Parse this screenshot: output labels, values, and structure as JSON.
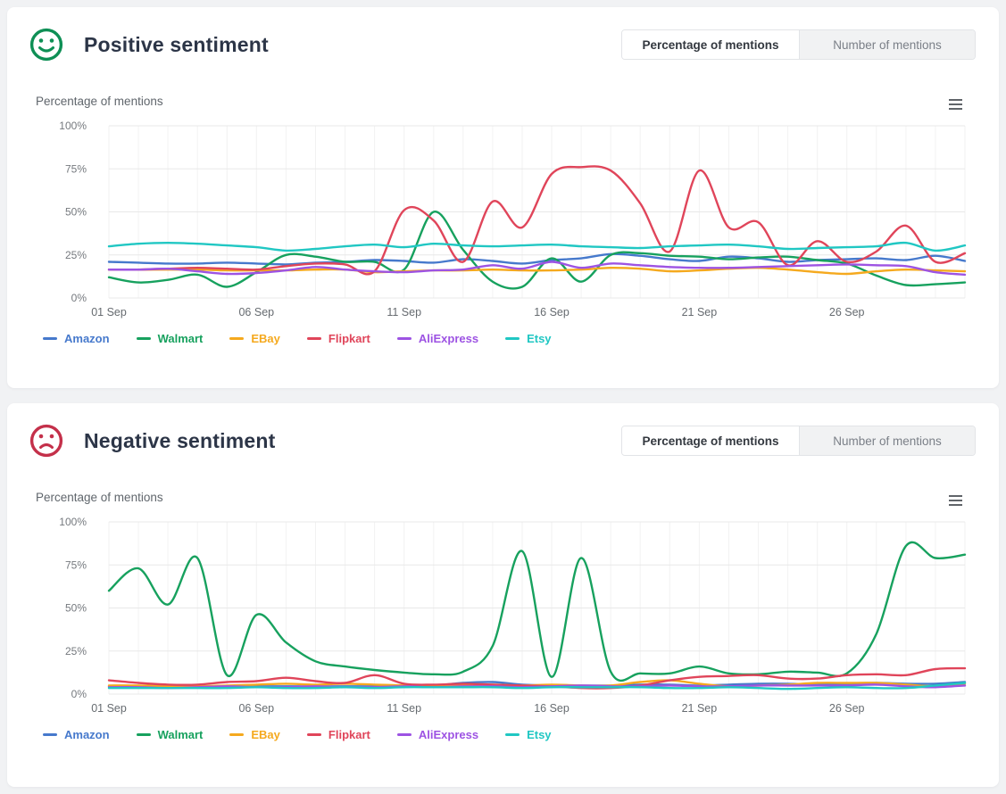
{
  "page": {
    "background_color": "#f1f2f4"
  },
  "panels": [
    {
      "title": "Positive sentiment",
      "icon": "smiley-face-icon",
      "icon_color": "#0e8f55",
      "axis_title": "Percentage of mentions",
      "toggle": {
        "options": [
          "Percentage of mentions",
          "Number of mentions"
        ],
        "active_index": 0
      },
      "menu_icon": "hamburger-menu-icon",
      "chart_index": 0
    },
    {
      "title": "Negative sentiment",
      "icon": "frowny-face-icon",
      "icon_color": "#c4304a",
      "axis_title": "Percentage of mentions",
      "toggle": {
        "options": [
          "Percentage of mentions",
          "Number of mentions"
        ],
        "active_index": 0
      },
      "menu_icon": "hamburger-menu-icon",
      "chart_index": 1
    }
  ],
  "chart_data": [
    {
      "type": "line",
      "title": "Positive sentiment",
      "ylabel": "Percentage of mentions",
      "ylim": [
        0,
        100
      ],
      "grid": true,
      "legend_position": "bottom-left",
      "y_tick_values": [
        0,
        25,
        50,
        75,
        100
      ],
      "y_tick_labels": [
        "0%",
        "25%",
        "50%",
        "75%",
        "100%"
      ],
      "x_tick_indices": [
        0,
        5,
        10,
        15,
        20,
        25
      ],
      "x_tick_labels": [
        "01 Sep",
        "06 Sep",
        "11 Sep",
        "16 Sep",
        "21 Sep",
        "26 Sep"
      ],
      "categories": [
        "01 Sep",
        "02 Sep",
        "03 Sep",
        "04 Sep",
        "05 Sep",
        "06 Sep",
        "07 Sep",
        "08 Sep",
        "09 Sep",
        "10 Sep",
        "11 Sep",
        "12 Sep",
        "13 Sep",
        "14 Sep",
        "15 Sep",
        "16 Sep",
        "17 Sep",
        "18 Sep",
        "19 Sep",
        "20 Sep",
        "21 Sep",
        "22 Sep",
        "23 Sep",
        "24 Sep",
        "25 Sep",
        "26 Sep",
        "27 Sep",
        "28 Sep",
        "29 Sep",
        "30 Sep"
      ],
      "series": [
        {
          "name": "Amazon",
          "color": "#4679cc",
          "values": [
            21,
            20.5,
            20,
            20,
            20.5,
            20,
            19.5,
            20.5,
            21,
            22,
            21.5,
            20.5,
            22.5,
            21.5,
            20,
            22,
            23,
            25.5,
            24.5,
            22.5,
            21.5,
            24,
            23,
            21,
            22,
            22.5,
            23,
            22,
            24.5,
            21.5
          ]
        },
        {
          "name": "Walmart",
          "color": "#17a15e",
          "values": [
            12,
            9,
            10.5,
            13.5,
            6.5,
            15,
            25,
            24,
            21,
            21,
            16.5,
            50,
            28,
            9.5,
            6.5,
            23,
            9.5,
            25,
            26,
            24.5,
            24,
            22.5,
            23.5,
            24,
            22,
            20,
            13,
            7.5,
            8,
            9
          ]
        },
        {
          "name": "EBay",
          "color": "#f5a91e",
          "values": [
            16.5,
            16.5,
            16.5,
            16.5,
            16,
            16,
            16,
            16.5,
            16.5,
            15,
            15.5,
            16,
            16,
            16.5,
            16,
            16,
            16.5,
            17.5,
            17,
            15.5,
            16,
            17,
            17.5,
            16.5,
            15,
            14,
            15.5,
            16.5,
            16,
            15.5
          ]
        },
        {
          "name": "Flipkart",
          "color": "#e0455a",
          "values": [
            16.5,
            16.5,
            17,
            17.5,
            17,
            16.5,
            18.5,
            20,
            19.5,
            15.5,
            51,
            45,
            21,
            56,
            41,
            72,
            76,
            74,
            55,
            27,
            74,
            41,
            44,
            19,
            33,
            21,
            27,
            42,
            21,
            26
          ]
        },
        {
          "name": "AliExpress",
          "color": "#9d53e3",
          "values": [
            16.5,
            16.5,
            17,
            15.5,
            14,
            14.5,
            16,
            18,
            16.5,
            15.5,
            15,
            16,
            16.5,
            19,
            17,
            21,
            17.5,
            20,
            19,
            18,
            17.5,
            17.5,
            18,
            18.5,
            19,
            19.5,
            19,
            18.5,
            15,
            13.5
          ]
        },
        {
          "name": "Etsy",
          "color": "#20c7c3",
          "values": [
            30,
            31.5,
            32,
            31.5,
            30.5,
            29.5,
            27.5,
            28.5,
            30,
            31,
            29.5,
            31.5,
            30.5,
            30,
            30.5,
            31,
            30,
            29.5,
            29,
            30,
            30.5,
            31,
            30,
            28.5,
            29,
            29.5,
            30,
            32,
            27.5,
            30.5
          ]
        }
      ]
    },
    {
      "type": "line",
      "title": "Negative sentiment",
      "ylabel": "Percentage of mentions",
      "ylim": [
        0,
        100
      ],
      "grid": true,
      "legend_position": "bottom-left",
      "y_tick_values": [
        0,
        25,
        50,
        75,
        100
      ],
      "y_tick_labels": [
        "0%",
        "25%",
        "50%",
        "75%",
        "100%"
      ],
      "x_tick_indices": [
        0,
        5,
        10,
        15,
        20,
        25
      ],
      "x_tick_labels": [
        "01 Sep",
        "06 Sep",
        "11 Sep",
        "16 Sep",
        "21 Sep",
        "26 Sep"
      ],
      "categories": [
        "01 Sep",
        "02 Sep",
        "03 Sep",
        "04 Sep",
        "05 Sep",
        "06 Sep",
        "07 Sep",
        "08 Sep",
        "09 Sep",
        "10 Sep",
        "11 Sep",
        "12 Sep",
        "13 Sep",
        "14 Sep",
        "15 Sep",
        "16 Sep",
        "17 Sep",
        "18 Sep",
        "19 Sep",
        "20 Sep",
        "21 Sep",
        "22 Sep",
        "23 Sep",
        "24 Sep",
        "25 Sep",
        "26 Sep",
        "27 Sep",
        "28 Sep",
        "29 Sep",
        "30 Sep"
      ],
      "series": [
        {
          "name": "Amazon",
          "color": "#4679cc",
          "values": [
            4.5,
            4.5,
            4,
            4,
            4.5,
            4.5,
            4.5,
            4.5,
            4.5,
            4.5,
            5,
            5,
            6.5,
            7,
            5.5,
            5,
            5,
            5,
            5.5,
            5.5,
            5,
            5.5,
            6,
            6,
            5.5,
            6,
            6.5,
            6,
            6,
            7
          ]
        },
        {
          "name": "Walmart",
          "color": "#17a15e",
          "values": [
            60,
            73,
            52,
            79,
            11,
            46,
            30,
            19,
            16,
            14,
            12.5,
            11.5,
            13,
            28,
            83,
            10,
            79,
            13,
            12,
            12,
            16,
            12,
            11.5,
            13,
            12.5,
            12,
            35,
            86,
            79,
            81
          ]
        },
        {
          "name": "EBay",
          "color": "#f5a91e",
          "values": [
            5,
            5,
            4.5,
            4.5,
            5,
            5.5,
            6,
            5.5,
            6,
            5.5,
            5,
            4.5,
            5,
            5.5,
            5,
            5.5,
            5,
            5,
            7,
            8,
            6,
            4.5,
            5,
            5.5,
            6.5,
            6.5,
            6.5,
            5.5,
            4.5,
            6
          ]
        },
        {
          "name": "Flipkart",
          "color": "#e0455a",
          "values": [
            8,
            6.5,
            5.5,
            5.5,
            7,
            7.5,
            9.5,
            7.5,
            6.5,
            11,
            6,
            5.5,
            6,
            5.5,
            5,
            4.5,
            3.5,
            3.5,
            5,
            8,
            10,
            10.5,
            11,
            9,
            9,
            11,
            11.5,
            11,
            14.5,
            15
          ]
        },
        {
          "name": "AliExpress",
          "color": "#9d53e3",
          "values": [
            4,
            4,
            3.5,
            4,
            4.5,
            4,
            4,
            4.5,
            4,
            4,
            4.5,
            4,
            4.5,
            4.5,
            4,
            4.5,
            5,
            4.5,
            4.5,
            5,
            4.5,
            4.5,
            5,
            5,
            5,
            5,
            5.5,
            4.5,
            4,
            5
          ]
        },
        {
          "name": "Etsy",
          "color": "#20c7c3",
          "values": [
            3.5,
            3.5,
            3.5,
            3.5,
            3.5,
            4,
            3.5,
            3.5,
            4,
            3.5,
            4,
            4,
            4,
            4,
            3.5,
            4,
            4,
            4,
            4,
            3.5,
            3.5,
            4,
            3.5,
            3,
            3.5,
            4,
            3.5,
            3.5,
            5,
            6.5
          ]
        }
      ]
    }
  ]
}
